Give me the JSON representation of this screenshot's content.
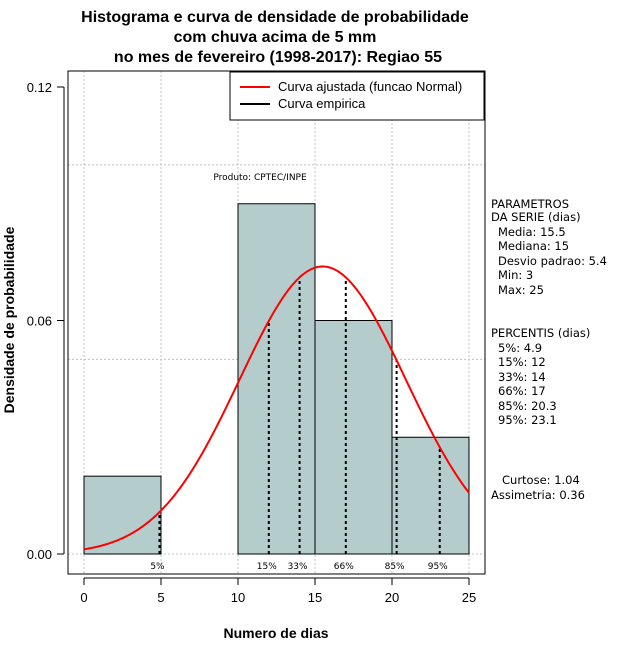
{
  "chart_data": {
    "type": "bar",
    "title_lines": [
      "Histograma e curva de densidade de probabilidade",
      "com chuva acima de 5 mm",
      "no mes de fevereiro (1998-2017): Regiao 55"
    ],
    "xlabel": "Numero de dias",
    "ylabel": "Densidade de probabilidade",
    "xlim": [
      -1,
      26
    ],
    "ylim": [
      0,
      0.12
    ],
    "x_ticks": [
      0,
      5,
      10,
      15,
      20,
      25
    ],
    "x_tick_labels": [
      "0",
      "5",
      "10",
      "15",
      "20",
      "25"
    ],
    "y_ticks": [
      0.0,
      0.06,
      0.12
    ],
    "y_tick_labels": [
      "0.00",
      "0.06",
      "0.12"
    ],
    "grid_x": [
      0,
      5,
      10,
      15,
      20,
      25
    ],
    "grid_y": [
      0.0,
      0.05,
      0.1
    ],
    "histogram": [
      {
        "x0": 0,
        "x1": 5,
        "density": 0.02
      },
      {
        "x0": 5,
        "x1": 10,
        "density": 0.0
      },
      {
        "x0": 10,
        "x1": 15,
        "density": 0.09
      },
      {
        "x0": 15,
        "x1": 20,
        "density": 0.06
      },
      {
        "x0": 20,
        "x1": 25,
        "density": 0.03
      }
    ],
    "normal_curve": {
      "name": "Curva ajustada (funcao Normal)",
      "mean": 15.5,
      "sd": 5.4,
      "x_range": [
        0,
        25
      ],
      "color": "#ff0000"
    },
    "empirical_curve": {
      "name": "Curva empirica",
      "color": "#000000"
    },
    "percentile_lines": [
      {
        "label": "5%",
        "x": 4.9
      },
      {
        "label": "15%",
        "x": 12
      },
      {
        "label": "33%",
        "x": 14
      },
      {
        "label": "66%",
        "x": 17
      },
      {
        "label": "85%",
        "x": 20.3
      },
      {
        "label": "95%",
        "x": 23.1
      }
    ],
    "legend": {
      "position": "top-right",
      "entries": [
        "Curva ajustada (funcao Normal)",
        "Curva empirica"
      ]
    },
    "annotation": "Produto: CPTEC/INPE",
    "side_panel": {
      "parametros_header": [
        "PARAMETROS",
        "DA SERIE (dias)"
      ],
      "parametros": [
        "Media: 15.5",
        "Mediana: 15",
        "Desvio padrao: 5.4",
        "Min: 3",
        "Max: 25"
      ],
      "percentis_header": "PERCENTIS (dias)",
      "percentis": [
        "5%: 4.9",
        "15%: 12",
        "33%: 14",
        "66%: 17",
        "85%: 20.3",
        "95%: 23.1"
      ],
      "shape": [
        "Curtose: 1.04",
        "Assimetria: 0.36"
      ]
    },
    "colors": {
      "bar_fill": "#b4cccc",
      "grid": "#c0c0c0"
    }
  }
}
